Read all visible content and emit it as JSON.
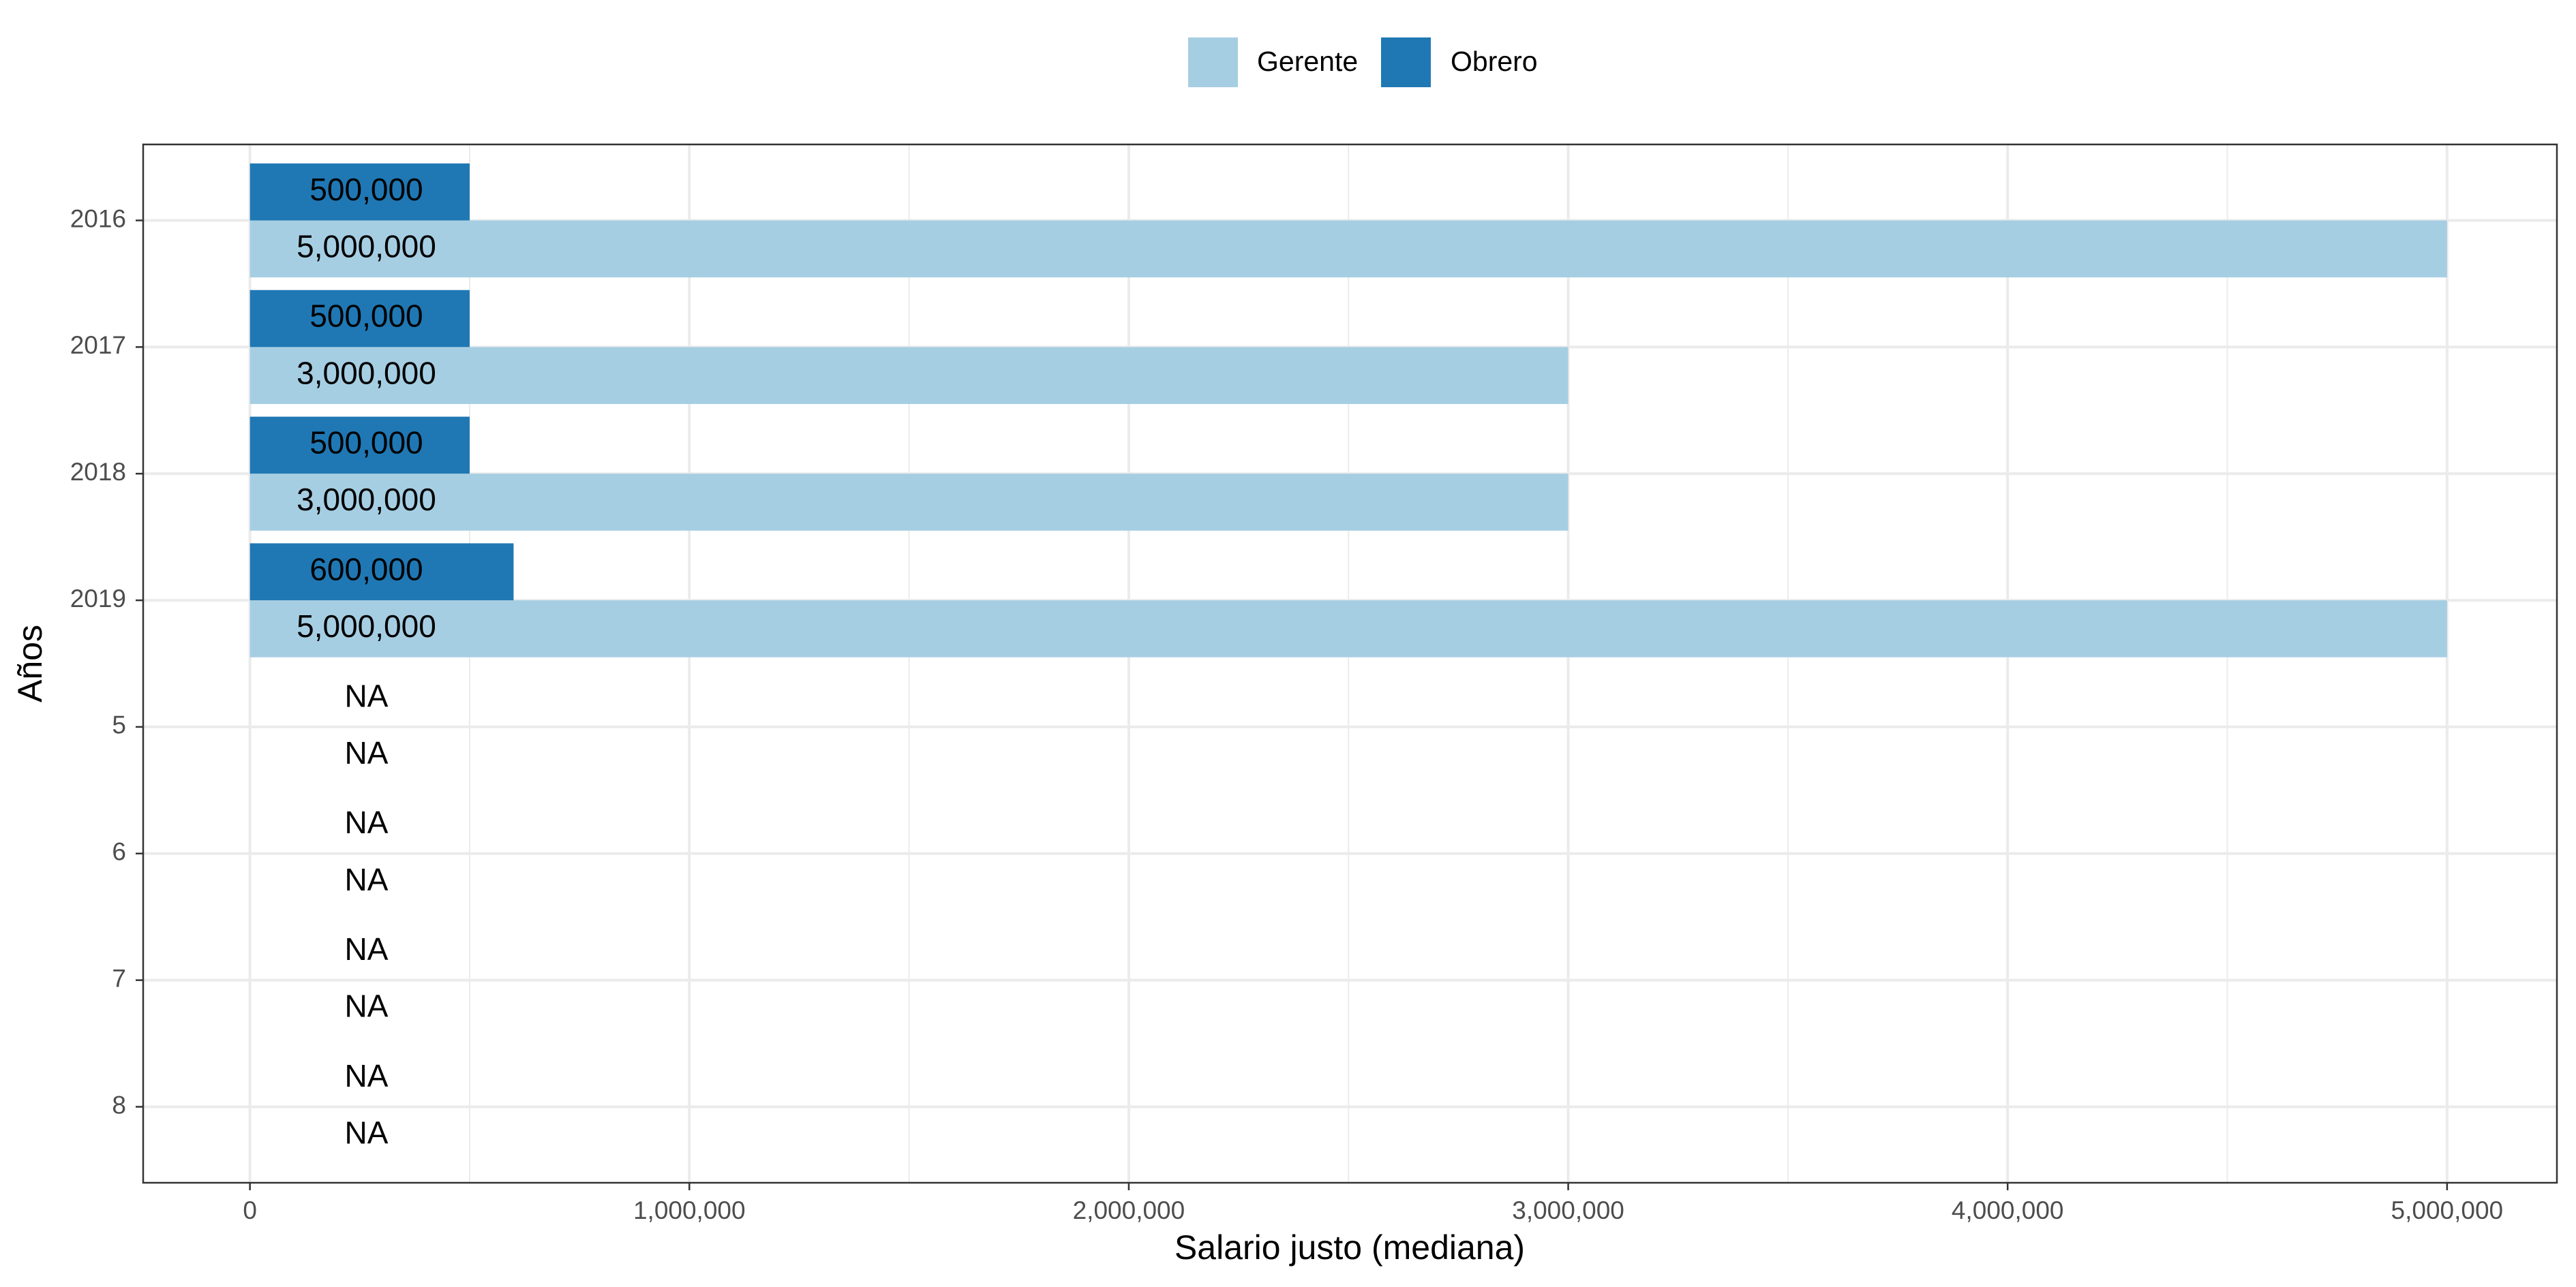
{
  "chart_data": {
    "type": "bar",
    "orientation": "horizontal",
    "xlabel": "Salario justo (mediana)",
    "ylabel": "Años",
    "xlim": [
      -243000,
      5250000
    ],
    "x_ticks": [
      0,
      1000000,
      2000000,
      3000000,
      4000000,
      5000000
    ],
    "x_tick_labels": [
      "0",
      "1,000,000",
      "2,000,000",
      "3,000,000",
      "4,000,000",
      "5,000,000"
    ],
    "categories": [
      "2016",
      "2017",
      "2018",
      "2019",
      "5",
      "6",
      "7",
      "8"
    ],
    "legend": {
      "position": "top",
      "entries": [
        {
          "name": "Gerente",
          "color": "#a6cee3"
        },
        {
          "name": "Obrero",
          "color": "#1f78b4"
        }
      ]
    },
    "series": [
      {
        "name": "Gerente",
        "color": "#a6cee3",
        "values": [
          5000000,
          3000000,
          3000000,
          5000000,
          null,
          null,
          null,
          null
        ],
        "labels": [
          "5,000,000",
          "3,000,000",
          "3,000,000",
          "5,000,000",
          "NA",
          "NA",
          "NA",
          "NA"
        ]
      },
      {
        "name": "Obrero",
        "color": "#1f78b4",
        "values": [
          500000,
          500000,
          500000,
          600000,
          null,
          null,
          null,
          null
        ],
        "labels": [
          "500,000",
          "500,000",
          "500,000",
          "600,000",
          "NA",
          "NA",
          "NA",
          "NA"
        ]
      }
    ],
    "grid": true,
    "theme": "bw"
  }
}
